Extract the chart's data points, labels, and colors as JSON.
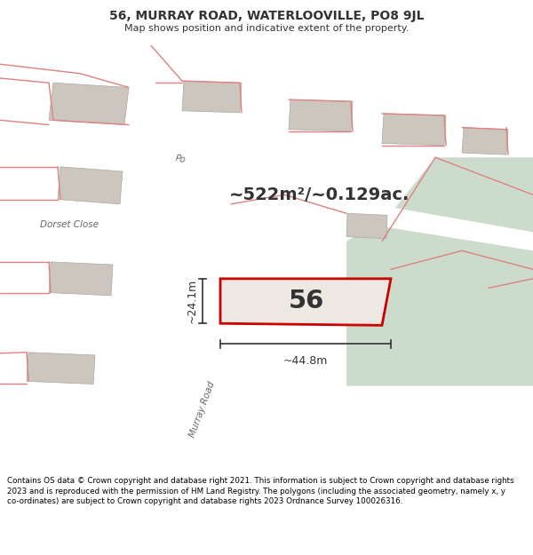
{
  "title_line1": "56, MURRAY ROAD, WATERLOOVILLE, PO8 9JL",
  "title_line2": "Map shows position and indicative extent of the property.",
  "area_text": "~522m²/~0.129ac.",
  "label_56": "56",
  "dim_width": "~44.8m",
  "dim_height": "~24.1m",
  "footer_text": "Contains OS data © Crown copyright and database right 2021. This information is subject to Crown copyright and database rights 2023 and is reproduced with the permission of HM Land Registry. The polygons (including the associated geometry, namely x, y co-ordinates) are subject to Crown copyright and database rights 2023 Ordnance Survey 100026316.",
  "map_bg": "#ede8e2",
  "road_color": "#ffffff",
  "building_color": "#ccc6be",
  "highlight_color": "#cc0000",
  "green_area": "#ccdccc",
  "title_bg": "#ffffff",
  "footer_bg": "#ffffff",
  "red_line_color": "#e08080",
  "dim_color": "#333333",
  "road_label_color": "#666666",
  "text_color": "#333333"
}
